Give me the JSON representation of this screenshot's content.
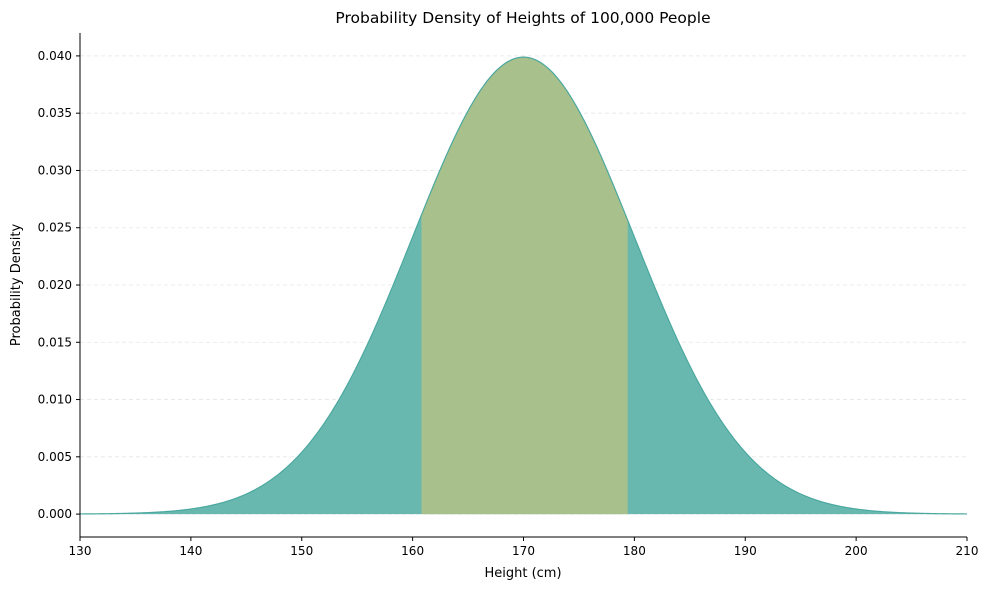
{
  "chart_data": {
    "type": "area",
    "title": "Probability Density of Heights of 100,000 People",
    "xlabel": "Height (cm)",
    "ylabel": "Probability Density",
    "xlim": [
      130,
      210
    ],
    "ylim": [
      -0.002,
      0.042
    ],
    "x_ticks": [
      130,
      140,
      150,
      160,
      170,
      180,
      190,
      200,
      210
    ],
    "y_ticks": [
      0.0,
      0.005,
      0.01,
      0.015,
      0.02,
      0.025,
      0.03,
      0.035,
      0.04
    ],
    "x_tick_labels": [
      "130",
      "140",
      "150",
      "160",
      "170",
      "180",
      "190",
      "200",
      "210"
    ],
    "y_tick_labels": [
      "0.000",
      "0.005",
      "0.010",
      "0.015",
      "0.020",
      "0.025",
      "0.030",
      "0.035",
      "0.040"
    ],
    "grid": {
      "y": true,
      "x": false,
      "style": "dashed"
    },
    "distribution": {
      "kind": "normal",
      "mean": 170,
      "std": 10,
      "peak_density": 0.0399
    },
    "series": [
      {
        "range": [
          130,
          210
        ],
        "color": "#69b8b0"
      },
      {
        "range": [
          160.8,
          179.4
        ],
        "color": "#a8c08b"
      }
    ],
    "curve_color": "#4aa89f"
  }
}
